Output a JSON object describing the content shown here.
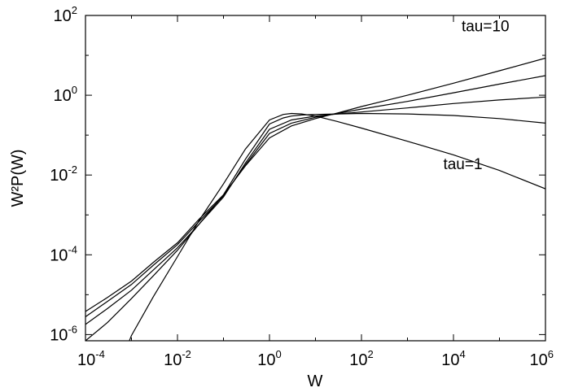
{
  "chart_data": {
    "type": "line",
    "xscale": "log",
    "yscale": "log",
    "xlim": [
      0.0001,
      1000000
    ],
    "ylim": [
      7e-07,
      100
    ],
    "xlabel": "W",
    "ylabel": "W²P(W)",
    "grid": false,
    "legend": "none",
    "xticks": [
      {
        "base": "10",
        "exp": "-4",
        "value": 0.0001
      },
      {
        "base": "10",
        "exp": "-2",
        "value": 0.01
      },
      {
        "base": "10",
        "exp": "0",
        "value": 1
      },
      {
        "base": "10",
        "exp": "2",
        "value": 100
      },
      {
        "base": "10",
        "exp": "4",
        "value": 10000
      },
      {
        "base": "10",
        "exp": "6",
        "value": 1000000
      }
    ],
    "yticks": [
      {
        "base": "10",
        "exp": "-6",
        "value": 1e-06
      },
      {
        "base": "10",
        "exp": "-4",
        "value": 0.0001
      },
      {
        "base": "10",
        "exp": "-2",
        "value": 0.01
      },
      {
        "base": "10",
        "exp": "0",
        "value": 1
      },
      {
        "base": "10",
        "exp": "2",
        "value": 100
      }
    ],
    "annotations": [
      {
        "text": "tau=10",
        "x": 15000,
        "y": 40
      },
      {
        "text": "tau=1",
        "x": 6000,
        "y": 0.014
      }
    ],
    "series": [
      {
        "x": [
          0.0009,
          0.001,
          0.003,
          0.01,
          0.03,
          0.1,
          0.3,
          1,
          2,
          3,
          5,
          10,
          30,
          100,
          1000,
          10000,
          100000,
          1000000
        ],
        "y": [
          7e-07,
          9.5e-07,
          9e-06,
          9e-05,
          0.00075,
          0.006,
          0.045,
          0.24,
          0.33,
          0.35,
          0.34,
          0.3,
          0.22,
          0.15,
          0.07,
          0.032,
          0.013,
          0.0045
        ]
      },
      {
        "x": [
          0.0001,
          0.0003,
          0.001,
          0.003,
          0.01,
          0.03,
          0.1,
          0.3,
          1,
          2,
          3,
          5,
          10,
          30,
          100,
          1000,
          10000,
          100000,
          1000000
        ],
        "y": [
          7e-07,
          2e-06,
          8e-06,
          3e-05,
          0.00013,
          0.0006,
          0.0032,
          0.025,
          0.19,
          0.27,
          0.3,
          0.32,
          0.33,
          0.34,
          0.35,
          0.34,
          0.31,
          0.26,
          0.2
        ]
      },
      {
        "x": [
          0.0001,
          0.0003,
          0.001,
          0.003,
          0.01,
          0.03,
          0.1,
          0.3,
          1,
          3,
          10,
          30,
          100,
          1000,
          10000,
          100000,
          1000000
        ],
        "y": [
          1.8e-06,
          4.5e-06,
          1.3e-05,
          4.2e-05,
          0.00015,
          0.0006,
          0.0028,
          0.02,
          0.14,
          0.24,
          0.3,
          0.34,
          0.38,
          0.48,
          0.62,
          0.76,
          0.9
        ]
      },
      {
        "x": [
          0.0001,
          0.0003,
          0.001,
          0.003,
          0.01,
          0.03,
          0.1,
          0.3,
          1,
          3,
          10,
          30,
          100,
          1000,
          10000,
          100000,
          1000000
        ],
        "y": [
          2.8e-06,
          6.8e-06,
          1.8e-05,
          5.5e-05,
          0.00018,
          0.0007,
          0.003,
          0.018,
          0.11,
          0.2,
          0.28,
          0.35,
          0.45,
          0.7,
          1.15,
          1.9,
          3.1
        ]
      },
      {
        "x": [
          0.0001,
          0.0003,
          0.001,
          0.003,
          0.01,
          0.03,
          0.1,
          0.3,
          1,
          3,
          10,
          30,
          100,
          1000,
          10000,
          100000,
          1000000
        ],
        "y": [
          3.8e-06,
          8.5e-06,
          2.2e-05,
          6.5e-05,
          0.0002,
          0.0008,
          0.0032,
          0.017,
          0.085,
          0.17,
          0.26,
          0.36,
          0.52,
          1.0,
          2.0,
          4.1,
          8.5
        ]
      }
    ]
  }
}
